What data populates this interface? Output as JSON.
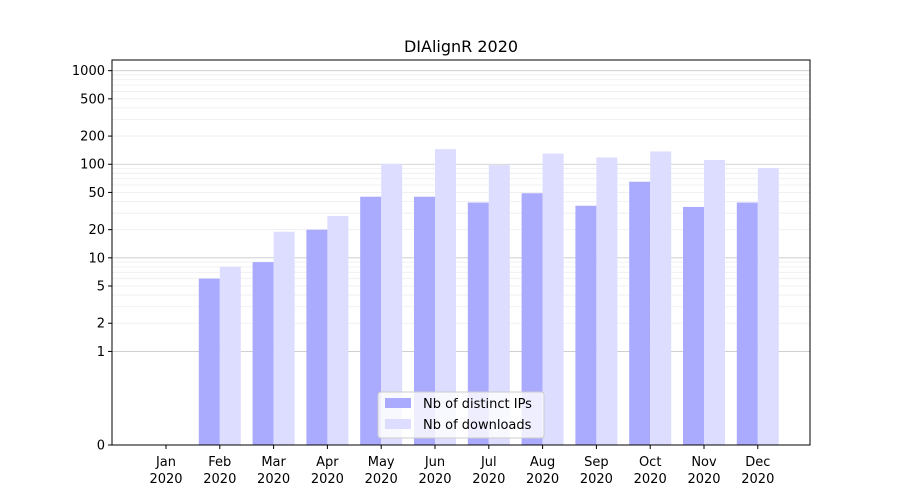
{
  "chart_data": {
    "type": "bar",
    "title": "DIAlignR 2020",
    "xlabel": "",
    "ylabel": "",
    "categories": [
      [
        "Jan",
        "2020"
      ],
      [
        "Feb",
        "2020"
      ],
      [
        "Mar",
        "2020"
      ],
      [
        "Apr",
        "2020"
      ],
      [
        "May",
        "2020"
      ],
      [
        "Jun",
        "2020"
      ],
      [
        "Jul",
        "2020"
      ],
      [
        "Aug",
        "2020"
      ],
      [
        "Sep",
        "2020"
      ],
      [
        "Oct",
        "2020"
      ],
      [
        "Nov",
        "2020"
      ],
      [
        "Dec",
        "2020"
      ]
    ],
    "series": [
      {
        "name": "Nb of distinct IPs",
        "color": "#aaaaff",
        "values": [
          0,
          6,
          9,
          20,
          45,
          45,
          39,
          49,
          36,
          65,
          35,
          39
        ]
      },
      {
        "name": "Nb of downloads",
        "color": "#ddddff",
        "values": [
          0,
          8,
          19,
          28,
          101,
          145,
          98,
          130,
          118,
          137,
          111,
          91
        ]
      }
    ],
    "y_scale": "symlog",
    "ylim": [
      0,
      1300
    ],
    "y_ticks": [
      0,
      1,
      2,
      5,
      10,
      20,
      50,
      100,
      200,
      500,
      1000
    ],
    "grid": true,
    "legend_position": "lower-center"
  }
}
